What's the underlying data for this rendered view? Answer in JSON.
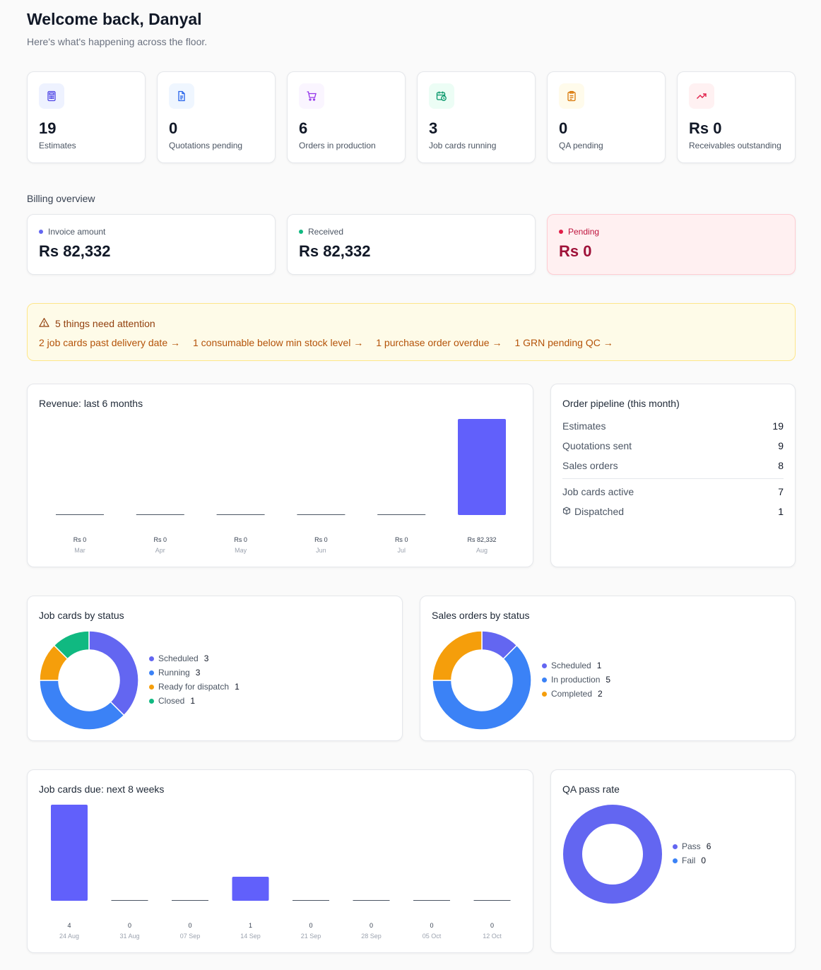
{
  "header": {
    "title": "Welcome back, Danyal",
    "subtitle": "Here's what's happening across the floor."
  },
  "stats": [
    {
      "value": "19",
      "label": "Estimates",
      "icon": "calculator-icon",
      "color": "#4f46e5",
      "bg": "#eef2ff"
    },
    {
      "value": "0",
      "label": "Quotations pending",
      "icon": "document-icon",
      "color": "#2563eb",
      "bg": "#eff6ff"
    },
    {
      "value": "6",
      "label": "Orders in production",
      "icon": "cart-icon",
      "color": "#9333ea",
      "bg": "#faf5ff"
    },
    {
      "value": "3",
      "label": "Job cards running",
      "icon": "calendar-clock-icon",
      "color": "#059669",
      "bg": "#ecfdf5"
    },
    {
      "value": "0",
      "label": "QA pending",
      "icon": "clipboard-icon",
      "color": "#d97706",
      "bg": "#fffbeb"
    },
    {
      "value": "Rs 0",
      "label": "Receivables outstanding",
      "icon": "trending-up-icon",
      "color": "#e11d48",
      "bg": "#fff1f2"
    }
  ],
  "billing": {
    "heading": "Billing overview",
    "invoice": {
      "label": "Invoice amount",
      "amount": "Rs 82,332",
      "dot": "#6366f1"
    },
    "received": {
      "label": "Received",
      "amount": "Rs 82,332",
      "dot": "#10b981"
    },
    "pending": {
      "label": "Pending",
      "amount": "Rs 0",
      "dot": "#e11d48"
    }
  },
  "attention": {
    "heading": "5 things need attention",
    "links": [
      "2 job cards past delivery date →",
      "1 consumable below min stock level →",
      "1 purchase order overdue →",
      "1 GRN pending QC →"
    ]
  },
  "revenue": {
    "title": "Revenue: last 6 months",
    "chart_data": {
      "type": "bar",
      "categories": [
        "Mar",
        "Apr",
        "May",
        "Jun",
        "Jul",
        "Aug"
      ],
      "values": [
        0,
        0,
        0,
        0,
        0,
        82332
      ],
      "value_labels": [
        "Rs 0",
        "Rs 0",
        "Rs 0",
        "Rs 0",
        "Rs 0",
        "Rs 82,332"
      ],
      "color": "#6160fb"
    }
  },
  "pipeline": {
    "title": "Order pipeline (this month)",
    "rows": [
      {
        "label": "Estimates",
        "value": "19"
      },
      {
        "label": "Quotations sent",
        "value": "9"
      },
      {
        "label": "Sales orders",
        "value": "8"
      },
      {
        "label": "Job cards active",
        "value": "7"
      },
      {
        "label": "Dispatched",
        "value": "1",
        "icon": "package-icon"
      }
    ]
  },
  "job_status": {
    "title": "Job cards by status",
    "chart_data": {
      "type": "pie",
      "labels": [
        "Scheduled",
        "Running",
        "Ready for dispatch",
        "Closed"
      ],
      "values": [
        3,
        3,
        1,
        1
      ],
      "colors": [
        "#6366f1",
        "#3b82f6",
        "#f59e0b",
        "#10b981"
      ]
    }
  },
  "sales_status": {
    "title": "Sales orders by status",
    "chart_data": {
      "type": "pie",
      "labels": [
        "Scheduled",
        "In production",
        "Completed"
      ],
      "values": [
        1,
        5,
        2
      ],
      "colors": [
        "#6366f1",
        "#3b82f6",
        "#f59e0b"
      ]
    }
  },
  "due": {
    "title": "Job cards due: next 8 weeks",
    "chart_data": {
      "type": "bar",
      "categories": [
        "24 Aug",
        "31 Aug",
        "07 Sep",
        "14 Sep",
        "21 Sep",
        "28 Sep",
        "05 Oct",
        "12 Oct"
      ],
      "values": [
        4,
        0,
        0,
        1,
        0,
        0,
        0,
        0
      ],
      "color": "#6160fb"
    }
  },
  "qa": {
    "title": "QA pass rate",
    "chart_data": {
      "type": "pie",
      "labels": [
        "Pass",
        "Fail"
      ],
      "values": [
        6,
        0
      ],
      "colors": [
        "#6366f1",
        "#3b82f6"
      ]
    }
  }
}
